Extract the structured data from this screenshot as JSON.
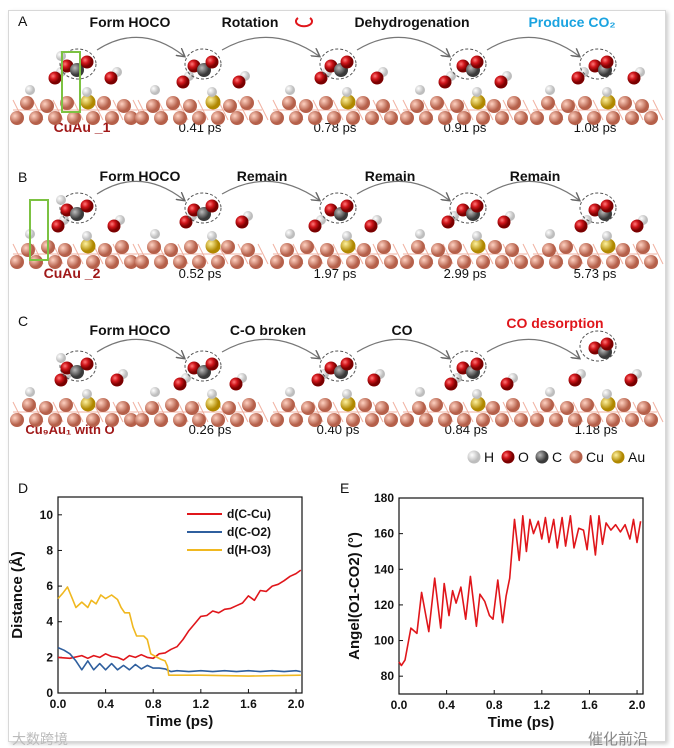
{
  "panels": {
    "A": {
      "label": "A",
      "system": "CuAu _1",
      "steps": [
        "Form HOCO",
        "Rotation",
        "Dehydrogenation",
        "Produce CO₂"
      ],
      "times": [
        "0.41 ps",
        "0.78 ps",
        "0.91 ps",
        "1.08 ps"
      ],
      "atom_labels": [
        "H",
        "O2",
        "O1",
        "C",
        "O3"
      ]
    },
    "B": {
      "label": "B",
      "system": "CuAu _2",
      "steps": [
        "Form HOCO",
        "Remain",
        "Remain",
        "Remain"
      ],
      "times": [
        "0.52 ps",
        "1.97 ps",
        "2.99 ps",
        "5.73 ps"
      ]
    },
    "C": {
      "label": "C",
      "system": "Cu₉Au₁ with O",
      "steps": [
        "Form HOCO",
        "C-O broken",
        "CO",
        "CO desorption"
      ],
      "times": [
        "0.26 ps",
        "0.40 ps",
        "0.84 ps",
        "1.18 ps"
      ]
    }
  },
  "element_legend": [
    {
      "symbol": "H",
      "color": "#f2f2f2"
    },
    {
      "symbol": "O",
      "color": "#d0161b"
    },
    {
      "symbol": "C",
      "color": "#6a6a6a"
    },
    {
      "symbol": "Cu",
      "color": "#e0907a"
    },
    {
      "symbol": "Au",
      "color": "#e6b820"
    }
  ],
  "colors": {
    "system": "#a01818",
    "produce": "#1aa3e0",
    "desorption": "#e0161b",
    "rotation_icon": "#e0161b"
  },
  "watermarks": {
    "left": "大数跨境",
    "right": "催化前沿"
  },
  "chart_data": [
    {
      "type": "line",
      "panel": "D",
      "xlabel": "Time (ps)",
      "ylabel": "Distance (Å)",
      "xlim": [
        0,
        2.05
      ],
      "ylim": [
        0,
        11
      ],
      "xticks": [
        "0.0",
        "0.4",
        "0.8",
        "1.2",
        "1.6",
        "2.0"
      ],
      "yticks": [
        "0",
        "2",
        "4",
        "6",
        "8",
        "10"
      ],
      "legend_position": "top-right",
      "series": [
        {
          "name": "d(C-Cu)",
          "color": "#e0161b",
          "x": [
            0,
            0.1,
            0.2,
            0.25,
            0.3,
            0.35,
            0.4,
            0.45,
            0.5,
            0.55,
            0.6,
            0.65,
            0.7,
            0.75,
            0.8,
            0.85,
            0.9,
            0.95,
            1.0,
            1.05,
            1.1,
            1.15,
            1.2,
            1.25,
            1.3,
            1.35,
            1.4,
            1.45,
            1.5,
            1.55,
            1.6,
            1.65,
            1.7,
            1.75,
            1.8,
            1.85,
            1.9,
            1.95,
            2.0,
            2.04
          ],
          "y": [
            2.0,
            1.95,
            2.1,
            1.95,
            2.1,
            2.0,
            2.2,
            2.05,
            2.0,
            1.85,
            2.1,
            2.0,
            2.15,
            2.0,
            1.95,
            2.2,
            2.25,
            2.45,
            2.6,
            3.0,
            3.5,
            3.9,
            4.3,
            4.35,
            4.6,
            4.5,
            4.7,
            4.75,
            4.9,
            5.05,
            5.45,
            5.2,
            5.75,
            5.7,
            6.0,
            6.1,
            6.3,
            6.55,
            6.7,
            6.9
          ]
        },
        {
          "name": "d(C-O2)",
          "color": "#2f5f9e",
          "x": [
            0,
            0.05,
            0.1,
            0.15,
            0.2,
            0.25,
            0.3,
            0.35,
            0.4,
            0.45,
            0.5,
            0.55,
            0.6,
            0.65,
            0.7,
            0.75,
            0.8,
            0.85,
            0.9,
            0.95,
            1.0,
            1.1,
            1.2,
            1.3,
            1.4,
            1.5,
            1.6,
            1.7,
            1.8,
            1.9,
            2.0,
            2.04
          ],
          "y": [
            2.55,
            2.4,
            2.2,
            1.8,
            1.3,
            1.8,
            1.3,
            1.65,
            1.3,
            1.65,
            1.3,
            1.55,
            1.3,
            1.6,
            1.35,
            1.55,
            1.4,
            1.4,
            1.35,
            1.2,
            1.25,
            1.2,
            1.25,
            1.2,
            1.25,
            1.2,
            1.25,
            1.2,
            1.25,
            1.2,
            1.25,
            1.2
          ]
        },
        {
          "name": "d(H-O3)",
          "color": "#f0b820",
          "x": [
            0,
            0.04,
            0.08,
            0.12,
            0.15,
            0.2,
            0.25,
            0.28,
            0.32,
            0.36,
            0.4,
            0.45,
            0.5,
            0.53,
            0.56,
            0.6,
            0.63,
            0.66,
            0.72,
            0.75,
            0.78,
            0.82,
            0.86,
            0.9,
            0.92,
            0.93,
            1.2,
            1.6,
            2.04
          ],
          "y": [
            5.3,
            5.6,
            5.95,
            5.3,
            4.8,
            5.1,
            4.8,
            5.2,
            5.0,
            5.5,
            5.3,
            5.5,
            5.25,
            4.8,
            4.5,
            4.5,
            3.7,
            3.2,
            3.2,
            3.0,
            2.2,
            2.05,
            1.9,
            1.8,
            1.5,
            1.0,
            1.0,
            0.95,
            1.0
          ]
        }
      ]
    },
    {
      "type": "line",
      "panel": "E",
      "xlabel": "Time (ps)",
      "ylabel": "Angel(O1-CO2) (°)",
      "xlim": [
        0,
        2.05
      ],
      "ylim": [
        70,
        180
      ],
      "xticks": [
        "0.0",
        "0.4",
        "0.8",
        "1.2",
        "1.6",
        "2.0"
      ],
      "yticks": [
        "80",
        "100",
        "120",
        "140",
        "160",
        "180"
      ],
      "series": [
        {
          "name": "angle",
          "color": "#e0161b",
          "x": [
            0,
            0.02,
            0.05,
            0.1,
            0.15,
            0.19,
            0.25,
            0.3,
            0.35,
            0.38,
            0.42,
            0.45,
            0.48,
            0.52,
            0.56,
            0.6,
            0.65,
            0.68,
            0.72,
            0.76,
            0.79,
            0.83,
            0.87,
            0.9,
            0.93,
            0.97,
            1.01,
            1.04,
            1.07,
            1.1,
            1.13,
            1.17,
            1.2,
            1.23,
            1.26,
            1.3,
            1.33,
            1.37,
            1.4,
            1.44,
            1.47,
            1.51,
            1.55,
            1.58,
            1.61,
            1.65,
            1.68,
            1.71,
            1.74,
            1.78,
            1.82,
            1.86,
            1.9,
            1.94,
            1.97,
            2.0,
            2.03
          ],
          "y": [
            88,
            86,
            89,
            107,
            104,
            127,
            105,
            135,
            107,
            132,
            114,
            128,
            121,
            130,
            112,
            136,
            108,
            126,
            122,
            114,
            112,
            134,
            110,
            125,
            135,
            168,
            145,
            170,
            150,
            168,
            160,
            167,
            157,
            169,
            155,
            168,
            152,
            169,
            153,
            170,
            152,
            163,
            162,
            151,
            170,
            148,
            170,
            154,
            166,
            162,
            165,
            161,
            165,
            157,
            168,
            155,
            167
          ]
        }
      ]
    }
  ]
}
